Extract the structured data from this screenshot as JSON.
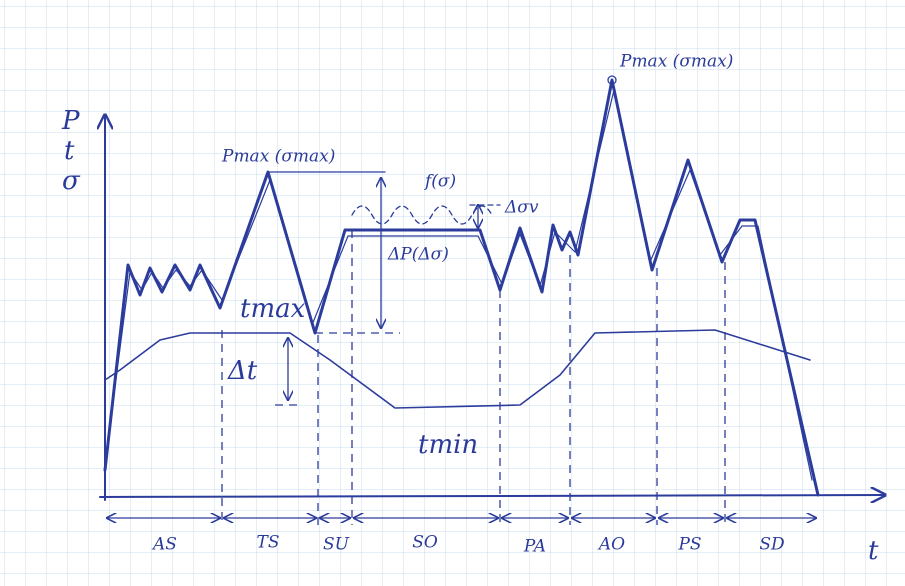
{
  "axes": {
    "y_labels": [
      "P",
      "t",
      "σ"
    ],
    "x_label": "t"
  },
  "annotations": {
    "p_max_1": "Pmax (σmax)",
    "p_max_2": "Pmax (σmax)",
    "t_max": "tmax",
    "t_min": "tmin",
    "delta_t": "Δt",
    "delta_p": "ΔP(Δσ)",
    "f_sigma": "f(σ)",
    "delta_sigma_v": "Δσv"
  },
  "phases": [
    "AS",
    "TS",
    "SU",
    "SO",
    "PA",
    "AO",
    "PS",
    "SD"
  ]
}
